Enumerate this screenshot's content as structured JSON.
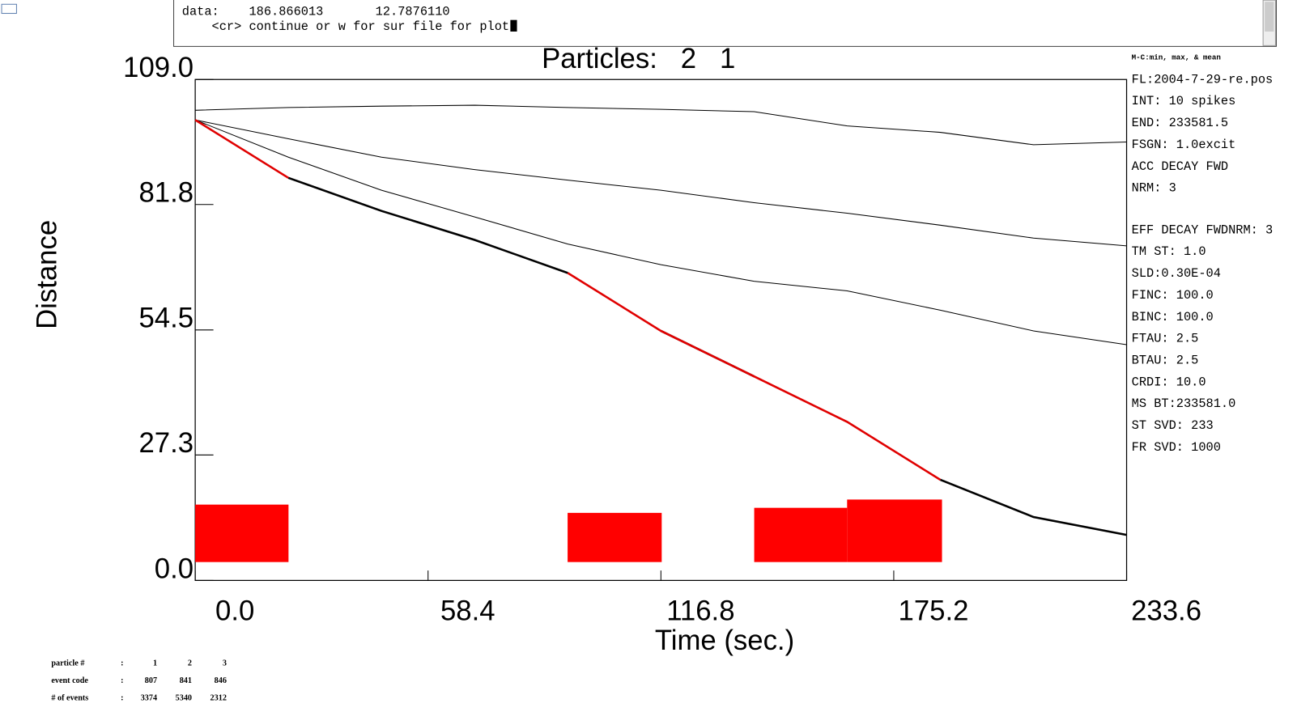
{
  "terminal": {
    "lines": [
      "data:    186.866013       12.7876110",
      "    <cr> continue or w for sur file for plot:"
    ]
  },
  "chart_data": {
    "type": "line",
    "title": "Particles:   2   1",
    "xlabel": "Time (sec.)",
    "ylabel": "Distance",
    "xlim": [
      0,
      233.6
    ],
    "ylim": [
      0,
      109.0
    ],
    "xticks": [
      {
        "value": 0,
        "label": "0.0"
      },
      58.4,
      116.8,
      175.2,
      233.6
    ],
    "yticks": [
      {
        "value": 0,
        "label": "0.0"
      },
      27.3,
      54.5,
      81.8,
      {
        "value": 109,
        "label": "109.0"
      }
    ],
    "x": [
      0,
      23.36,
      46.72,
      70.08,
      93.44,
      116.8,
      140.16,
      163.52,
      186.88,
      210.24,
      233.6
    ],
    "series": [
      {
        "color": "#000000",
        "width": 1,
        "values": [
          102.3,
          102.9,
          103.2,
          103.4,
          102.9,
          102.5,
          102.0,
          98.9,
          97.5,
          94.8,
          95.4
        ]
      },
      {
        "color": "#000000",
        "width": 1,
        "values": [
          100.2,
          96.1,
          92.1,
          89.4,
          87.1,
          84.9,
          82.2,
          79.9,
          77.3,
          74.5,
          72.8
        ]
      },
      {
        "color": "#000000",
        "width": 1,
        "values": [
          100.2,
          92.1,
          84.9,
          79.1,
          73.2,
          68.7,
          65.1,
          63.0,
          58.8,
          54.3,
          51.3
        ]
      },
      {
        "color": "#000000",
        "width": 2.5,
        "values": [
          null,
          87.6,
          80.4,
          74.1,
          66.9,
          null,
          44.4,
          null,
          21.9,
          13.8,
          9.9
        ]
      },
      {
        "color": "#000000",
        "width": 2.5,
        "values": [
          null,
          null,
          null,
          null,
          null,
          54.3,
          44.4,
          null,
          null,
          null,
          null
        ]
      },
      {
        "color": "#e00000",
        "width": 2.5,
        "values": [
          100.2,
          87.6,
          null,
          null,
          66.9,
          54.3,
          44.4,
          34.5,
          21.9,
          null,
          null
        ]
      }
    ],
    "rects": {
      "color": "#ff0000",
      "items": [
        {
          "x": [
            0,
            23.4
          ],
          "y": [
            4.0,
            16.5
          ]
        },
        {
          "x": [
            93.4,
            117.0
          ],
          "y": [
            4.0,
            14.7
          ]
        },
        {
          "x": [
            140.2,
            163.5
          ],
          "y": [
            4.0,
            15.8
          ]
        },
        {
          "x": [
            163.5,
            187.3
          ],
          "y": [
            4.0,
            17.6
          ]
        }
      ]
    }
  },
  "side_panel": {
    "heading": "M-C:min, max, & mean",
    "lines": [
      "FL:2004-7-29-re.pos",
      "INT: 10 spikes",
      "END:  233581.5",
      "FSGN: 1.0excit",
      "ACC DECAY FWD",
      "NRM:  3"
    ],
    "lines2": [
      "EFF DECAY FWDNRM:  3",
      "TM ST:   1.0",
      "SLD:0.30E-04",
      "FINC: 100.0",
      "BINC: 100.0",
      "FTAU:   2.5",
      "BTAU:   2.5",
      "CRDI:  10.0",
      "MS BT:233581.0",
      "ST SVD: 233",
      "FR SVD: 1000"
    ]
  },
  "table": {
    "rows": [
      [
        "particle #",
        "1",
        "2",
        "3"
      ],
      [
        "event code",
        "807",
        "841",
        "846"
      ],
      [
        "# of events",
        "3374",
        "5340",
        "2312"
      ]
    ]
  }
}
